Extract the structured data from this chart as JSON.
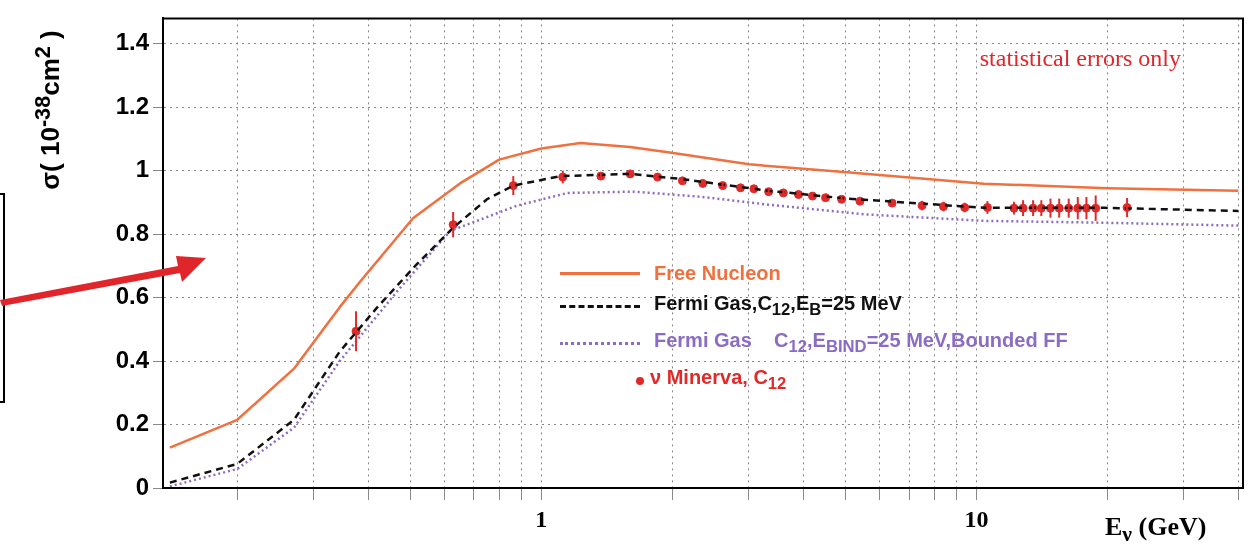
{
  "chart_data": {
    "type": "line",
    "xlabel": "E$_{ν}$ (GeV)",
    "ylabel": "σ( 10$^{-38}$cm$^{2}$ )",
    "annotations": [
      "statistical errors only"
    ],
    "xlim": [
      0.135,
      41
    ],
    "ylim": [
      0,
      1.48
    ],
    "xticks": [
      {
        "value": 0.2,
        "label": null
      },
      {
        "value": 0.3,
        "label": null
      },
      {
        "value": 0.4,
        "label": null
      },
      {
        "value": 0.5,
        "label": null
      },
      {
        "value": 0.6,
        "label": null
      },
      {
        "value": 0.7,
        "label": null
      },
      {
        "value": 0.8,
        "label": null
      },
      {
        "value": 0.9,
        "label": null
      },
      1,
      {
        "value": 2,
        "label": null
      },
      {
        "value": 3,
        "label": null
      },
      {
        "value": 4,
        "label": null
      },
      {
        "value": 5,
        "label": null
      },
      {
        "value": 6,
        "label": null
      },
      {
        "value": 7,
        "label": null
      },
      {
        "value": 8,
        "label": null
      },
      {
        "value": 9,
        "label": null
      },
      10,
      {
        "value": 20,
        "label": null
      },
      {
        "value": 30,
        "label": null
      },
      {
        "value": 40,
        "label": null
      }
    ],
    "yticks": [
      0,
      0.2,
      0.4,
      0.6,
      0.8,
      1,
      1.2,
      1.4
    ],
    "log": "x",
    "grid": true,
    "legend": "bottom right",
    "series": [
      {
        "name": "Free Nucleon",
        "type": "line",
        "line_style": "solid",
        "marker": "none",
        "color": "#f0703f",
        "x": [
          0.14,
          0.2,
          0.27,
          0.344,
          0.383,
          0.507,
          0.65,
          0.8,
          1.0,
          1.23,
          1.6,
          2.01,
          3.0,
          4.96,
          10.4,
          20,
          40
        ],
        "values": [
          0.127,
          0.215,
          0.376,
          0.57,
          0.65,
          0.85,
          0.96,
          1.035,
          1.07,
          1.087,
          1.075,
          1.056,
          1.02,
          0.996,
          0.959,
          0.945,
          0.937
        ]
      },
      {
        "name": "Fermi Gas,C$_{12}$,E$_{B}$=25 MeV",
        "type": "line",
        "line_style": "dashed",
        "marker": "none",
        "color": "#111111",
        "x": [
          0.14,
          0.2,
          0.27,
          0.344,
          0.42,
          0.513,
          0.627,
          0.75,
          0.862,
          1.106,
          1.6,
          2.09,
          3.32,
          4.96,
          10.4,
          19.7,
          40
        ],
        "values": [
          0.017,
          0.076,
          0.215,
          0.43,
          0.57,
          0.7,
          0.82,
          0.91,
          0.953,
          0.983,
          0.99,
          0.974,
          0.937,
          0.913,
          0.883,
          0.883,
          0.873
        ]
      },
      {
        "name": "Fermi Gas    C$_{12}$,E$_{BIND}$=25 MeV,Bounded FF",
        "type": "line",
        "line_style": "dotted",
        "marker": "none",
        "color": "#8b6cc4",
        "x": [
          0.14,
          0.2,
          0.27,
          0.344,
          0.473,
          0.617,
          0.88,
          1.15,
          1.63,
          2.32,
          3.32,
          5.6,
          10.4,
          19.7,
          40
        ],
        "values": [
          0.005,
          0.06,
          0.19,
          0.4,
          0.63,
          0.81,
          0.89,
          0.93,
          0.934,
          0.918,
          0.893,
          0.862,
          0.842,
          0.836,
          0.827
        ]
      },
      {
        "name": "ν Minerva, C$_{12}$",
        "type": "scatter",
        "marker": "circle",
        "color": "#e02a2a",
        "x": [
          0.375,
          0.627,
          0.862,
          1.12,
          1.37,
          1.6,
          1.85,
          2.11,
          2.35,
          2.61,
          2.87,
          3.08,
          3.33,
          3.6,
          3.9,
          4.2,
          4.5,
          4.9,
          5.4,
          6.4,
          7.5,
          8.4,
          9.4,
          10.6,
          12.2,
          12.8,
          13.5,
          14.1,
          14.8,
          15.5,
          16.3,
          17.1,
          17.9,
          18.8,
          22.2
        ],
        "values": [
          0.494,
          0.83,
          0.953,
          0.98,
          0.983,
          0.99,
          0.98,
          0.968,
          0.96,
          0.953,
          0.946,
          0.943,
          0.934,
          0.93,
          0.925,
          0.92,
          0.915,
          0.91,
          0.904,
          0.898,
          0.89,
          0.887,
          0.884,
          0.884,
          0.882,
          0.882,
          0.882,
          0.882,
          0.882,
          0.882,
          0.882,
          0.882,
          0.882,
          0.882,
          0.884
        ],
        "errors": [
          0.063,
          0.04,
          0.03,
          0.02,
          0.01,
          0.01,
          0.01,
          0.01,
          0.01,
          0.01,
          0.01,
          0.01,
          0.01,
          0.01,
          0.01,
          0.01,
          0.01,
          0.01,
          0.01,
          0.01,
          0.015,
          0.015,
          0.015,
          0.02,
          0.02,
          0.025,
          0.025,
          0.025,
          0.03,
          0.03,
          0.03,
          0.035,
          0.035,
          0.04,
          0.03
        ]
      }
    ]
  }
}
